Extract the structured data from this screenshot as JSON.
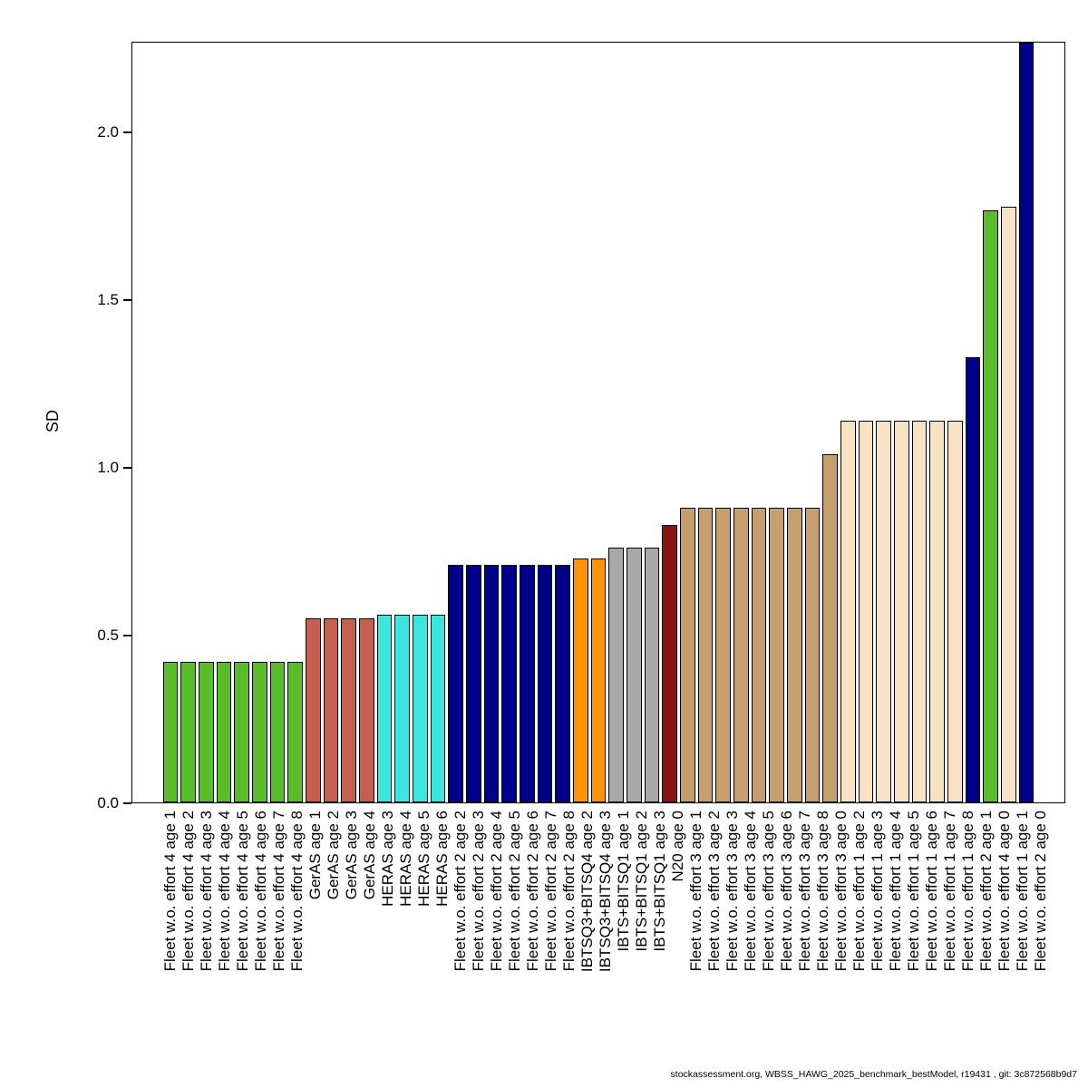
{
  "chart_data": {
    "type": "bar",
    "title": "",
    "xlabel": "",
    "ylabel": "SD",
    "ylim": [
      0,
      2.27
    ],
    "yticks": [
      0,
      0.5,
      1,
      1.5,
      2
    ],
    "grid": false,
    "legend": "none",
    "bars": [
      {
        "label": "Fleet w.o. effort 4 age 1",
        "value": 0.42,
        "color": "#59bd2a"
      },
      {
        "label": "Fleet w.o. effort 4 age 2",
        "value": 0.42,
        "color": "#59bd2a"
      },
      {
        "label": "Fleet w.o. effort 4 age 3",
        "value": 0.42,
        "color": "#59bd2a"
      },
      {
        "label": "Fleet w.o. effort 4 age 4",
        "value": 0.42,
        "color": "#59bd2a"
      },
      {
        "label": "Fleet w.o. effort 4 age 5",
        "value": 0.42,
        "color": "#59bd2a"
      },
      {
        "label": "Fleet w.o. effort 4 age 6",
        "value": 0.42,
        "color": "#59bd2a"
      },
      {
        "label": "Fleet w.o. effort 4 age 7",
        "value": 0.42,
        "color": "#59bd2a"
      },
      {
        "label": "Fleet w.o. effort 4 age 8",
        "value": 0.42,
        "color": "#59bd2a"
      },
      {
        "label": "GerAS age 1",
        "value": 0.55,
        "color": "#c4604d"
      },
      {
        "label": "GerAS age 2",
        "value": 0.55,
        "color": "#c4604d"
      },
      {
        "label": "GerAS age 3",
        "value": 0.55,
        "color": "#c4604d"
      },
      {
        "label": "GerAS age 4",
        "value": 0.55,
        "color": "#c4604d"
      },
      {
        "label": "HERAS age 3",
        "value": 0.56,
        "color": "#3ce6e0"
      },
      {
        "label": "HERAS age 4",
        "value": 0.56,
        "color": "#3ce6e0"
      },
      {
        "label": "HERAS age 5",
        "value": 0.56,
        "color": "#3ce6e0"
      },
      {
        "label": "HERAS age 6",
        "value": 0.56,
        "color": "#3ce6e0"
      },
      {
        "label": "Fleet w.o. effort 2 age 2",
        "value": 0.71,
        "color": "#00008b"
      },
      {
        "label": "Fleet w.o. effort 2 age 3",
        "value": 0.71,
        "color": "#00008b"
      },
      {
        "label": "Fleet w.o. effort 2 age 4",
        "value": 0.71,
        "color": "#00008b"
      },
      {
        "label": "Fleet w.o. effort 2 age 5",
        "value": 0.71,
        "color": "#00008b"
      },
      {
        "label": "Fleet w.o. effort 2 age 6",
        "value": 0.71,
        "color": "#00008b"
      },
      {
        "label": "Fleet w.o. effort 2 age 7",
        "value": 0.71,
        "color": "#00008b"
      },
      {
        "label": "Fleet w.o. effort 2 age 8",
        "value": 0.71,
        "color": "#00008b"
      },
      {
        "label": "IBTSQ3+BITSQ4 age 2",
        "value": 0.73,
        "color": "#ff9300"
      },
      {
        "label": "IBTSQ3+BITSQ4 age 3",
        "value": 0.73,
        "color": "#ff9300"
      },
      {
        "label": "IBTS+BITSQ1 age 1",
        "value": 0.76,
        "color": "#a8a8a8"
      },
      {
        "label": "IBTS+BITSQ1 age 2",
        "value": 0.76,
        "color": "#a8a8a8"
      },
      {
        "label": "IBTS+BITSQ1 age 3",
        "value": 0.76,
        "color": "#a8a8a8"
      },
      {
        "label": "N20 age 0",
        "value": 0.83,
        "color": "#8d1313"
      },
      {
        "label": "Fleet w.o. effort 3 age 1",
        "value": 0.88,
        "color": "#c5a06c"
      },
      {
        "label": "Fleet w.o. effort 3 age 2",
        "value": 0.88,
        "color": "#c5a06c"
      },
      {
        "label": "Fleet w.o. effort 3 age 3",
        "value": 0.88,
        "color": "#c5a06c"
      },
      {
        "label": "Fleet w.o. effort 3 age 4",
        "value": 0.88,
        "color": "#c5a06c"
      },
      {
        "label": "Fleet w.o. effort 3 age 5",
        "value": 0.88,
        "color": "#c5a06c"
      },
      {
        "label": "Fleet w.o. effort 3 age 6",
        "value": 0.88,
        "color": "#c5a06c"
      },
      {
        "label": "Fleet w.o. effort 3 age 7",
        "value": 0.88,
        "color": "#c5a06c"
      },
      {
        "label": "Fleet w.o. effort 3 age 8",
        "value": 0.88,
        "color": "#c5a06c"
      },
      {
        "label": "Fleet w.o. effort 3 age 0",
        "value": 1.04,
        "color": "#c5a06c"
      },
      {
        "label": "Fleet w.o. effort 1 age 2",
        "value": 1.14,
        "color": "#f8e2c4"
      },
      {
        "label": "Fleet w.o. effort 1 age 3",
        "value": 1.14,
        "color": "#f8e2c4"
      },
      {
        "label": "Fleet w.o. effort 1 age 4",
        "value": 1.14,
        "color": "#f8e2c4"
      },
      {
        "label": "Fleet w.o. effort 1 age 5",
        "value": 1.14,
        "color": "#f8e2c4"
      },
      {
        "label": "Fleet w.o. effort 1 age 6",
        "value": 1.14,
        "color": "#f8e2c4"
      },
      {
        "label": "Fleet w.o. effort 1 age 7",
        "value": 1.14,
        "color": "#f8e2c4"
      },
      {
        "label": "Fleet w.o. effort 1 age 8",
        "value": 1.14,
        "color": "#f8e2c4"
      },
      {
        "label": "Fleet w.o. effort 2 age 1",
        "value": 1.33,
        "color": "#00008b"
      },
      {
        "label": "Fleet w.o. effort 4 age 0",
        "value": 1.77,
        "color": "#59bd2a"
      },
      {
        "label": "Fleet w.o. effort 1 age 1",
        "value": 1.78,
        "color": "#f8e2c4"
      },
      {
        "label": "Fleet w.o. effort 2 age 0",
        "value": 2.28,
        "color": "#00008b"
      }
    ]
  },
  "footer": "stockassessment.org, WBSS_HAWG_2025_benchmark_bestModel, r19431 , git: 3c872568b9d7"
}
